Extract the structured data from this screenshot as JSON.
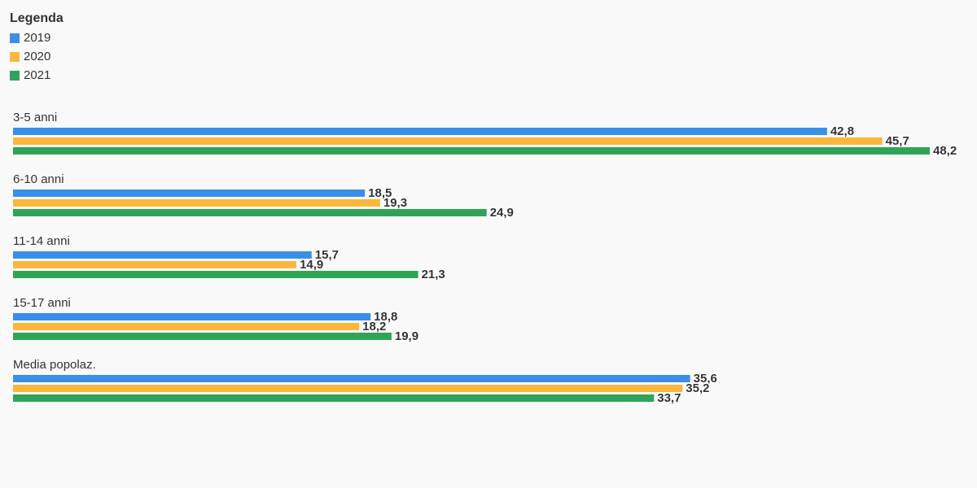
{
  "chart_data": {
    "type": "bar",
    "orientation": "horizontal",
    "legend_title": "Legenda",
    "categories": [
      "3-5 anni",
      "6-10 anni",
      "11-14 anni",
      "15-17 anni",
      "Media popolaz."
    ],
    "series": [
      {
        "name": "2019",
        "color": "#3a8ee8",
        "values": [
          42.8,
          18.5,
          15.7,
          18.8,
          35.6
        ],
        "value_labels": [
          "42,8",
          "18,5",
          "15,7",
          "18,8",
          "35,6"
        ]
      },
      {
        "name": "2020",
        "color": "#fbb73c",
        "values": [
          45.7,
          19.3,
          14.9,
          18.2,
          35.2
        ],
        "value_labels": [
          "45,7",
          "19,3",
          "14,9",
          "18,2",
          "35,2"
        ]
      },
      {
        "name": "2021",
        "color": "#2fa458",
        "values": [
          48.2,
          24.9,
          21.3,
          19.9,
          33.7
        ],
        "value_labels": [
          "48,2",
          "24,9",
          "21,3",
          "19,9",
          "33,7"
        ]
      }
    ]
  }
}
